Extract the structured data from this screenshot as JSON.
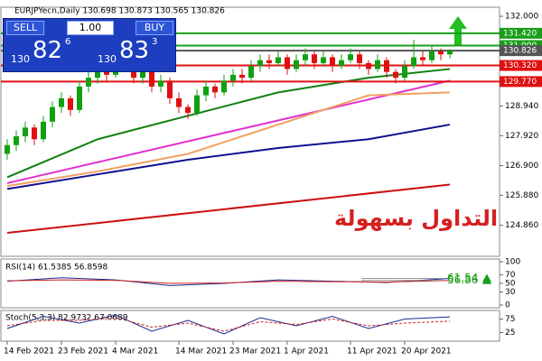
{
  "chart_data": [
    {
      "type": "candlestick",
      "title": "EURJPYecn,Daily 130.698 130.873 130.565 130.826",
      "ohlc": [
        [
          127.3,
          127.8,
          127.1,
          127.6
        ],
        [
          127.6,
          128.1,
          127.4,
          127.9
        ],
        [
          127.9,
          128.4,
          127.7,
          128.2
        ],
        [
          128.2,
          128.3,
          127.6,
          127.8
        ],
        [
          127.8,
          128.6,
          127.7,
          128.4
        ],
        [
          128.4,
          129.1,
          128.2,
          128.9
        ],
        [
          128.9,
          129.4,
          128.7,
          129.2
        ],
        [
          129.2,
          129.3,
          128.6,
          128.8
        ],
        [
          128.8,
          129.8,
          128.7,
          129.6
        ],
        [
          129.6,
          130.1,
          129.4,
          129.9
        ],
        [
          129.9,
          130.4,
          129.7,
          130.2
        ],
        [
          130.2,
          130.4,
          129.8,
          130.0
        ],
        [
          130.0,
          130.6,
          129.9,
          130.4
        ],
        [
          130.4,
          130.6,
          130.1,
          130.3
        ],
        [
          130.3,
          130.4,
          129.7,
          129.9
        ],
        [
          129.9,
          130.3,
          129.7,
          130.1
        ],
        [
          130.1,
          130.2,
          129.4,
          129.6
        ],
        [
          129.6,
          130.0,
          129.4,
          129.8
        ],
        [
          129.8,
          129.9,
          129.0,
          129.2
        ],
        [
          129.2,
          129.4,
          128.7,
          128.9
        ],
        [
          128.9,
          129.0,
          128.5,
          128.7
        ],
        [
          128.7,
          129.5,
          128.6,
          129.3
        ],
        [
          129.3,
          129.8,
          129.1,
          129.6
        ],
        [
          129.6,
          129.7,
          129.2,
          129.4
        ],
        [
          129.4,
          130.0,
          129.3,
          129.8
        ],
        [
          129.8,
          130.2,
          129.6,
          130.0
        ],
        [
          130.0,
          130.2,
          129.7,
          129.9
        ],
        [
          129.9,
          130.5,
          129.8,
          130.3
        ],
        [
          130.3,
          130.7,
          130.1,
          130.5
        ],
        [
          130.5,
          130.7,
          130.2,
          130.4
        ],
        [
          130.4,
          130.8,
          130.3,
          130.6
        ],
        [
          130.6,
          130.7,
          130.0,
          130.2
        ],
        [
          130.2,
          130.7,
          130.1,
          130.5
        ],
        [
          130.5,
          130.9,
          130.3,
          130.7
        ],
        [
          130.7,
          130.8,
          130.2,
          130.4
        ],
        [
          130.4,
          130.8,
          130.3,
          130.6
        ],
        [
          130.6,
          130.7,
          130.1,
          130.3
        ],
        [
          130.3,
          130.7,
          130.2,
          130.5
        ],
        [
          130.5,
          130.9,
          130.4,
          130.7
        ],
        [
          130.7,
          130.8,
          130.2,
          130.4
        ],
        [
          130.4,
          130.5,
          130.0,
          130.2
        ],
        [
          130.2,
          130.7,
          130.1,
          130.5
        ],
        [
          130.5,
          130.6,
          129.9,
          130.1
        ],
        [
          130.1,
          130.2,
          129.7,
          129.9
        ],
        [
          129.9,
          130.5,
          129.8,
          130.3
        ],
        [
          130.3,
          131.2,
          130.2,
          130.6
        ],
        [
          130.6,
          130.8,
          130.3,
          130.5
        ],
        [
          130.5,
          131.0,
          130.4,
          130.8
        ],
        [
          130.8,
          130.9,
          130.5,
          130.7
        ],
        [
          130.698,
          130.873,
          130.565,
          130.826
        ]
      ],
      "up_color": "#10a010",
      "down_color": "#e01010",
      "ylim": [
        123.8,
        132.31
      ],
      "yticks": [
        {
          "value": 132,
          "label": "132.000"
        },
        {
          "value": 128.94,
          "label": "128.940"
        },
        {
          "value": 127.92,
          "label": "127.920"
        },
        {
          "value": 126.9,
          "label": "126.900"
        },
        {
          "value": 125.88,
          "label": "125.880"
        },
        {
          "value": 124.86,
          "label": "124.860"
        }
      ],
      "levels": [
        {
          "value": 131.42,
          "label": "131.420",
          "color": "#1a9e1a"
        },
        {
          "value": 131,
          "label": "131.000",
          "color": "#1a9e1a"
        },
        {
          "value": 130.826,
          "label": "130.826",
          "color": "#555555"
        },
        {
          "value": 130.32,
          "label": "130.320",
          "color": "#e01010"
        },
        {
          "value": 129.77,
          "label": "129.770",
          "color": "#e01010"
        }
      ],
      "series": [
        {
          "color": "#cc1010",
          "x": [
            0,
            49
          ],
          "values": [
            124.6,
            126.25
          ]
        },
        {
          "color": "#101090",
          "x": [
            0,
            10,
            20,
            30,
            40,
            49
          ],
          "values": [
            126.1,
            126.6,
            127.1,
            127.5,
            127.8,
            128.3
          ]
        },
        {
          "color": "#108010",
          "x": [
            0,
            10,
            20,
            30,
            40,
            49
          ],
          "values": [
            126.5,
            127.8,
            128.6,
            129.4,
            129.9,
            130.2
          ]
        },
        {
          "color": "#e030d0",
          "x": [
            0,
            49
          ],
          "values": [
            126.3,
            129.8
          ]
        },
        {
          "color": "#f0a060",
          "x": [
            0,
            10,
            20,
            30,
            40,
            49
          ],
          "values": [
            126.2,
            126.7,
            127.3,
            128.3,
            129.3,
            129.4
          ]
        }
      ],
      "xticks": [
        {
          "value": 0,
          "label": "14 Feb 2021"
        },
        {
          "value": 6,
          "label": "23 Feb 2021"
        },
        {
          "value": 12,
          "label": "4 Mar 2021"
        },
        {
          "value": 19,
          "label": "14 Mar 2021"
        },
        {
          "value": 25,
          "label": "23 Mar 2021"
        },
        {
          "value": 31,
          "label": "1 Apr 2021"
        },
        {
          "value": 38,
          "label": "11 Apr 2021"
        },
        {
          "value": 44,
          "label": "20 Apr 2021"
        }
      ]
    },
    {
      "type": "line",
      "title": "RSI(14) 61.5385 56.8598",
      "ylim": [
        0,
        100
      ],
      "yticks": [
        0,
        30,
        50,
        70,
        100
      ],
      "series": [
        {
          "color": "#1a2a90",
          "x": [
            0,
            6,
            12,
            18,
            24,
            30,
            36,
            42,
            49
          ],
          "values": [
            55,
            63,
            58,
            45,
            50,
            58,
            55,
            52,
            61.54
          ]
        },
        {
          "color": "#d02020",
          "x": [
            0,
            6,
            12,
            18,
            24,
            30,
            36,
            42,
            49
          ],
          "values": [
            56,
            58,
            57,
            50,
            51,
            55,
            54,
            53,
            56.86
          ]
        }
      ],
      "markers": [
        {
          "value": 61.54,
          "color": "#1a9e1a"
        },
        {
          "value": 56.86,
          "color": "#1a9e1a"
        }
      ]
    },
    {
      "type": "line",
      "title": "Stoch(5,3,3) 82.9732 67.0689",
      "ylim": [
        0,
        100
      ],
      "yticks": [
        25,
        75
      ],
      "series": [
        {
          "color": "#1a2a90",
          "x": [
            0,
            4,
            8,
            12,
            16,
            20,
            24,
            28,
            32,
            36,
            40,
            44,
            49
          ],
          "values": [
            40,
            85,
            60,
            90,
            30,
            70,
            20,
            80,
            50,
            85,
            40,
            75,
            82.97
          ]
        },
        {
          "color": "#d02020",
          "dashed": true,
          "x": [
            0,
            4,
            8,
            12,
            16,
            20,
            24,
            28,
            32,
            36,
            40,
            44,
            49
          ],
          "values": [
            50,
            70,
            70,
            80,
            45,
            60,
            30,
            65,
            55,
            75,
            50,
            60,
            67.07
          ]
        }
      ]
    }
  ],
  "trade_panel": {
    "sell": "SELL",
    "lot": "1.00",
    "buy": "BUY",
    "sell_price": [
      "130",
      "82",
      "6"
    ],
    "buy_price": [
      "130",
      "83",
      "3"
    ]
  },
  "logo": "التداول بسهولة"
}
